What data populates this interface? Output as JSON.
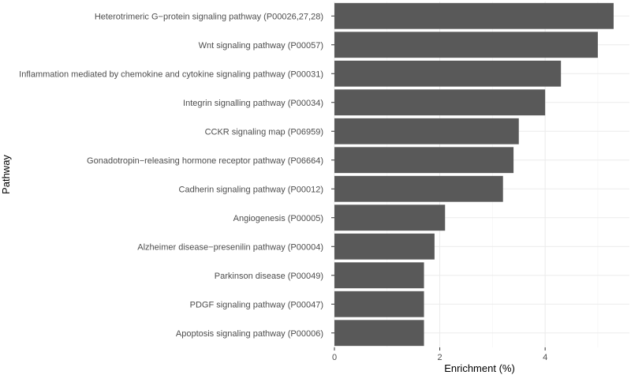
{
  "chart_data": {
    "type": "bar",
    "orientation": "horizontal",
    "categories": [
      "Heterotrimeric G−protein signaling pathway (P00026,27,28)",
      "Wnt signaling pathway (P00057)",
      "Inflammation mediated by chemokine and cytokine signaling pathway (P00031)",
      "Integrin signalling pathway (P00034)",
      "CCKR signaling map (P06959)",
      "Gonadotropin−releasing hormone receptor pathway (P06664)",
      "Cadherin signaling pathway (P00012)",
      "Angiogenesis (P00005)",
      "Alzheimer disease−presenilin pathway (P00004)",
      "Parkinson disease (P00049)",
      "PDGF signaling pathway (P00047)",
      "Apoptosis signaling pathway (P00006)"
    ],
    "values": [
      5.3,
      5.0,
      4.3,
      4.0,
      3.5,
      3.4,
      3.2,
      2.1,
      1.9,
      1.7,
      1.7,
      1.7
    ],
    "xlabel": "Enrichment (%)",
    "ylabel": "Pathway",
    "xlim": [
      0,
      5.6
    ],
    "xticks": [
      "0",
      "2",
      "4"
    ],
    "bar_color": "#595959",
    "grid": true
  }
}
